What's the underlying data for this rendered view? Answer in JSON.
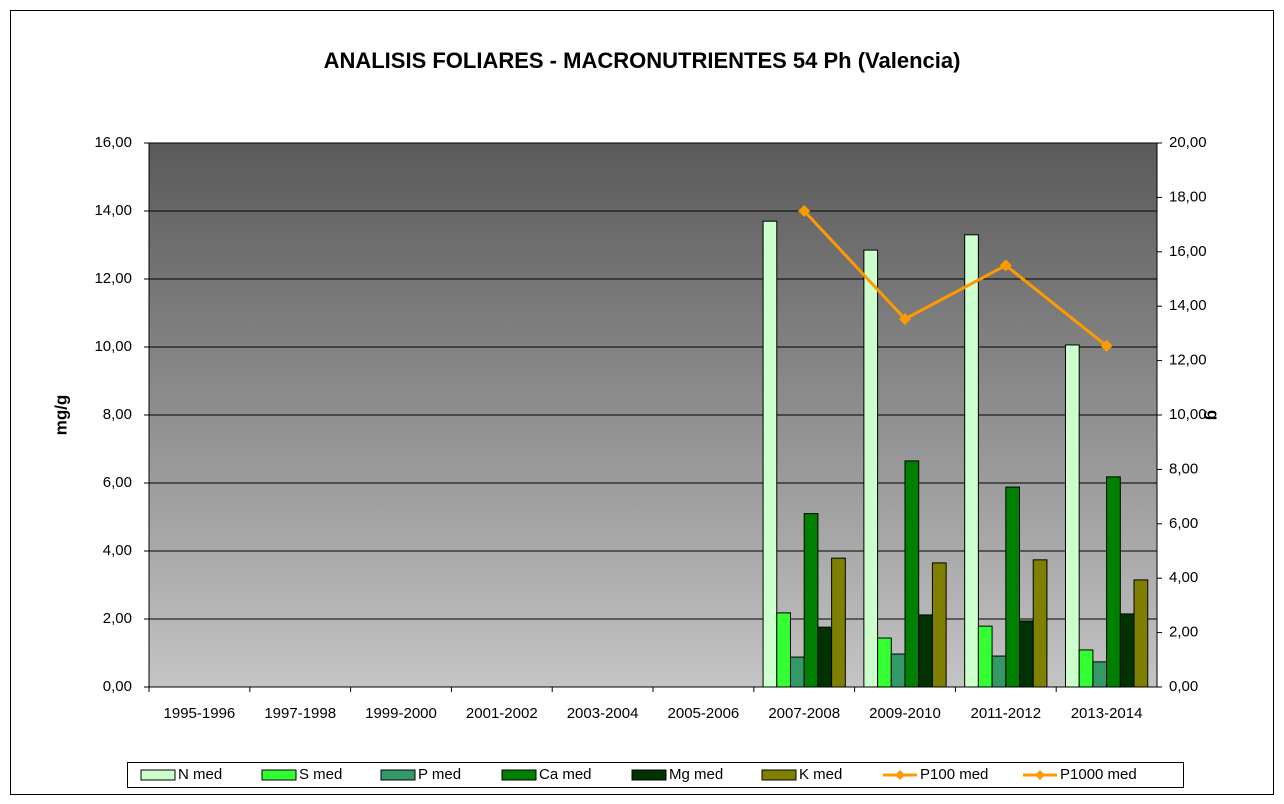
{
  "chart_data": {
    "type": "bar",
    "title": "ANALISIS FOLIARES - MACRONUTRIENTES 54 Ph (Valencia)",
    "y_label": "mg/g",
    "y2_label": "g",
    "categories": [
      "1995-1996",
      "1997-1998",
      "1999-2000",
      "2001-2002",
      "2003-2004",
      "2005-2006",
      "2007-2008",
      "2009-2010",
      "2011-2012",
      "2013-2014"
    ],
    "series": [
      {
        "name": "N med",
        "type": "bar",
        "color": "#ccffcc",
        "values": [
          null,
          null,
          null,
          null,
          null,
          null,
          13.7,
          12.85,
          13.3,
          10.06
        ]
      },
      {
        "name": "S med",
        "type": "bar",
        "color": "#33ff33",
        "values": [
          null,
          null,
          null,
          null,
          null,
          null,
          2.18,
          1.44,
          1.79,
          1.09
        ]
      },
      {
        "name": "P med",
        "type": "bar",
        "color": "#339966",
        "values": [
          null,
          null,
          null,
          null,
          null,
          null,
          0.88,
          0.97,
          0.91,
          0.74
        ]
      },
      {
        "name": "Ca med",
        "type": "bar",
        "color": "#008000",
        "values": [
          null,
          null,
          null,
          null,
          null,
          null,
          5.1,
          6.65,
          5.88,
          6.18
        ]
      },
      {
        "name": "Mg med",
        "type": "bar",
        "color": "#003300",
        "values": [
          null,
          null,
          null,
          null,
          null,
          null,
          1.76,
          2.12,
          1.94,
          2.15
        ]
      },
      {
        "name": "K med",
        "type": "bar",
        "color": "#808000",
        "values": [
          null,
          null,
          null,
          null,
          null,
          null,
          3.79,
          3.65,
          3.74,
          3.15
        ]
      },
      {
        "name": "P100 med",
        "type": "line",
        "axis": "y2",
        "color": "#ff9900",
        "values": [
          null,
          null,
          null,
          null,
          null,
          null,
          null,
          null,
          null,
          null
        ]
      },
      {
        "name": "P1000 med",
        "type": "line",
        "axis": "y2",
        "color": "#ff9900",
        "values": [
          null,
          null,
          null,
          null,
          null,
          null,
          17.5,
          13.53,
          15.5,
          12.54
        ]
      }
    ],
    "ylim": [
      0,
      16
    ],
    "yticks": [
      {
        "value": 0,
        "label": "0,00"
      },
      {
        "value": 2,
        "label": "2,00"
      },
      {
        "value": 4,
        "label": "4,00"
      },
      {
        "value": 6,
        "label": "6,00"
      },
      {
        "value": 8,
        "label": "8,00"
      },
      {
        "value": 10,
        "label": "10,00"
      },
      {
        "value": 12,
        "label": "12,00"
      },
      {
        "value": 14,
        "label": "14,00"
      },
      {
        "value": 16,
        "label": "16,00"
      }
    ],
    "y2lim": [
      0,
      20
    ],
    "y2ticks": [
      {
        "value": 0,
        "label": "0,00"
      },
      {
        "value": 2,
        "label": "2,00"
      },
      {
        "value": 4,
        "label": "4,00"
      },
      {
        "value": 6,
        "label": "6,00"
      },
      {
        "value": 8,
        "label": "8,00"
      },
      {
        "value": 10,
        "label": "10,00"
      },
      {
        "value": 12,
        "label": "12,00"
      },
      {
        "value": 14,
        "label": "14,00"
      },
      {
        "value": 16,
        "label": "16,00"
      },
      {
        "value": 18,
        "label": "18,00"
      },
      {
        "value": 20,
        "label": "20,00"
      }
    ],
    "grid": true,
    "legend": "bottom"
  }
}
